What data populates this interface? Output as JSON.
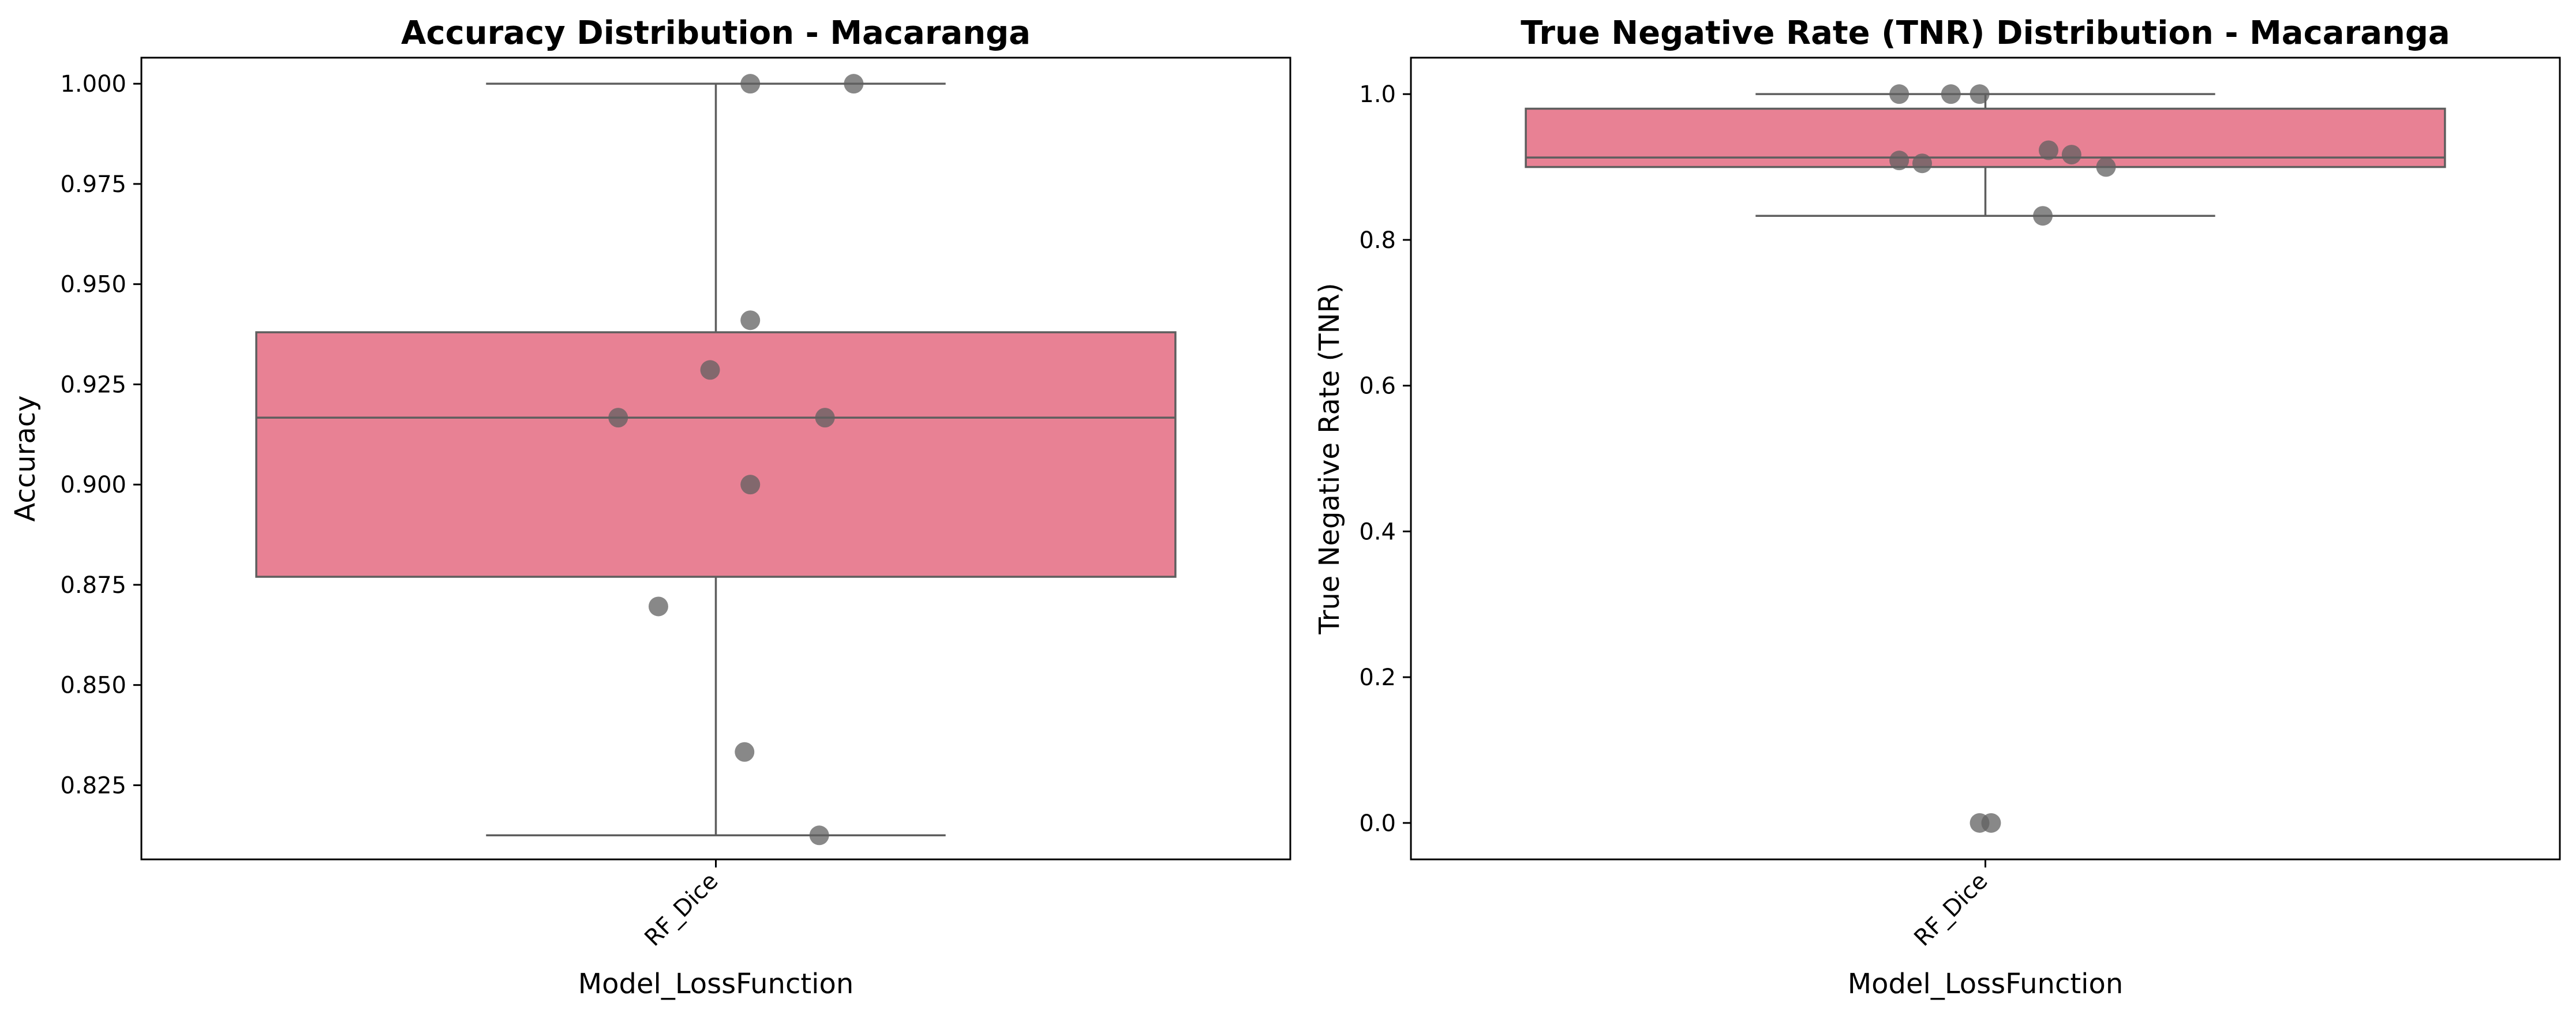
{
  "colors": {
    "box_fill": "#e88194",
    "box_edge": "#5e5e5e",
    "whisker": "#5e5e5e",
    "point": "#606060",
    "point_alpha": 0.75,
    "axes_edge": "#000000",
    "background": "#ffffff"
  },
  "chart_data": [
    {
      "type": "box",
      "title": "Accuracy Distribution - Macaranga",
      "xlabel": "Model_LossFunction",
      "ylabel": "Accuracy",
      "categories": [
        "RF_Dice"
      ],
      "ylim": [
        0.8065,
        1.0065
      ],
      "yticks": [
        0.825,
        0.85,
        0.875,
        0.9,
        0.925,
        0.95,
        0.975,
        1.0
      ],
      "ytick_labels": [
        "0.825",
        "0.850",
        "0.875",
        "0.900",
        "0.925",
        "0.950",
        "0.975",
        "1.000"
      ],
      "grid": false,
      "box": {
        "whisker_low": 0.8125,
        "q1": 0.877,
        "median": 0.9167,
        "q3": 0.938,
        "whisker_high": 1.0
      },
      "points": [
        {
          "y": 1.0,
          "jitter": 0.03
        },
        {
          "y": 1.0,
          "jitter": 0.12
        },
        {
          "y": 0.941,
          "jitter": 0.03
        },
        {
          "y": 0.9286,
          "jitter": -0.005
        },
        {
          "y": 0.9167,
          "jitter": -0.085
        },
        {
          "y": 0.9167,
          "jitter": 0.095
        },
        {
          "y": 0.9,
          "jitter": 0.03
        },
        {
          "y": 0.8696,
          "jitter": -0.05
        },
        {
          "y": 0.8333,
          "jitter": 0.025
        },
        {
          "y": 0.8125,
          "jitter": 0.09
        }
      ]
    },
    {
      "type": "box",
      "title": "True Negative Rate (TNR) Distribution - Macaranga",
      "xlabel": "Model_LossFunction",
      "ylabel": "True Negative Rate (TNR)",
      "categories": [
        "RF_Dice"
      ],
      "ylim": [
        -0.05,
        1.05
      ],
      "yticks": [
        0.0,
        0.2,
        0.4,
        0.6,
        0.8,
        1.0
      ],
      "ytick_labels": [
        "0.0",
        "0.2",
        "0.4",
        "0.6",
        "0.8",
        "1.0"
      ],
      "grid": false,
      "box": {
        "whisker_low": 0.833,
        "q1": 0.9,
        "median": 0.913,
        "q3": 0.98,
        "whisker_high": 1.0
      },
      "points": [
        {
          "y": 1.0,
          "jitter": -0.075
        },
        {
          "y": 1.0,
          "jitter": -0.03
        },
        {
          "y": 1.0,
          "jitter": -0.005
        },
        {
          "y": 0.923,
          "jitter": 0.055
        },
        {
          "y": 0.917,
          "jitter": 0.075
        },
        {
          "y": 0.909,
          "jitter": -0.075
        },
        {
          "y": 0.905,
          "jitter": -0.055
        },
        {
          "y": 0.9,
          "jitter": 0.105
        },
        {
          "y": 0.833,
          "jitter": 0.05
        },
        {
          "y": 0.0,
          "jitter": -0.005
        },
        {
          "y": 0.0,
          "jitter": 0.005
        }
      ]
    }
  ]
}
